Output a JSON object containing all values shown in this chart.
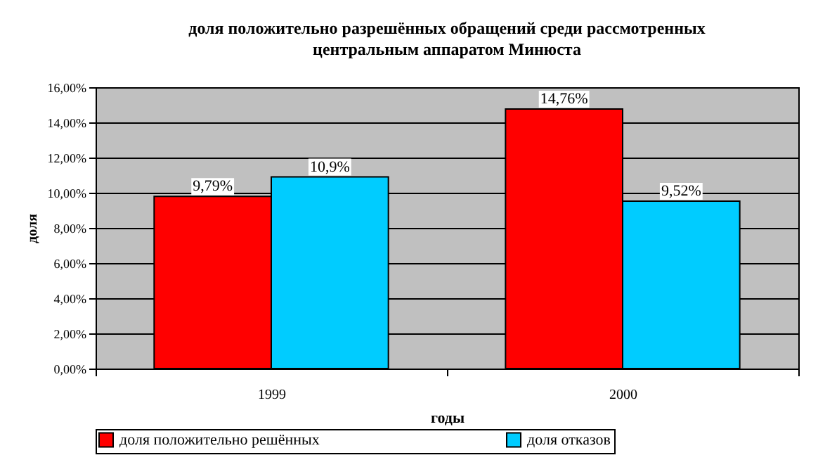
{
  "chart_data": {
    "type": "bar",
    "title": "доля положительно разрешённых обращений среди рассмотренных центральным аппаратом Минюста",
    "xlabel": "годы",
    "ylabel": "доля",
    "categories": [
      "1999",
      "2000"
    ],
    "series": [
      {
        "name": "доля положительно решённых",
        "color": "#ff0000",
        "values": [
          9.79,
          14.76
        ],
        "value_labels": [
          "9,79%",
          "14,76%"
        ]
      },
      {
        "name": "доля отказов",
        "color": "#00ccff",
        "values": [
          10.9,
          9.52
        ],
        "value_labels": [
          "10,9%",
          "9,52%"
        ]
      }
    ],
    "ylim": [
      0,
      16
    ],
    "yticks": [
      {
        "value": 0,
        "label": "0,00%"
      },
      {
        "value": 2,
        "label": "2,00%"
      },
      {
        "value": 4,
        "label": "4,00%"
      },
      {
        "value": 6,
        "label": "6,00%"
      },
      {
        "value": 8,
        "label": "8,00%"
      },
      {
        "value": 10,
        "label": "10,00%"
      },
      {
        "value": 12,
        "label": "12,00%"
      },
      {
        "value": 14,
        "label": "14,00%"
      },
      {
        "value": 16,
        "label": "16,00%"
      }
    ],
    "grid": "y",
    "legend": "bottom"
  }
}
